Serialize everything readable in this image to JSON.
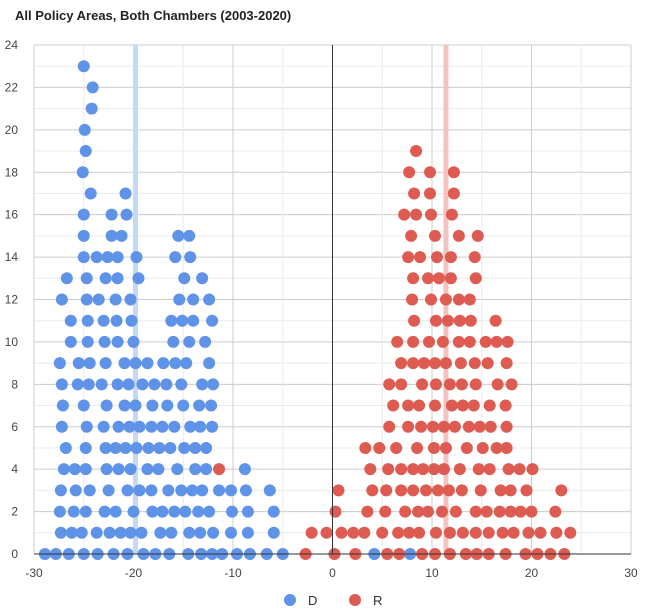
{
  "chart_data": {
    "type": "scatter",
    "title": "All Policy Areas, Both Chambers (2003-2020)",
    "xlabel": "",
    "ylabel": "",
    "xlim": [
      -30,
      30
    ],
    "ylim": [
      0,
      24
    ],
    "x_ticks": [
      -30,
      -20,
      -10,
      0,
      10,
      20,
      30
    ],
    "y_ticks": [
      0,
      2,
      4,
      6,
      8,
      10,
      12,
      14,
      16,
      18,
      20,
      22,
      24
    ],
    "grid": true,
    "legend_position": "bottom",
    "series": [
      {
        "name": "D",
        "color": "#5f93e8",
        "mean_line_x": -19.8,
        "mean_line_color": "#c4d8f7",
        "x_by_level": [
          [
            -28.9,
            -27.8,
            -26.5,
            -25.0,
            -23.6,
            -22.0,
            -20.6,
            -19.0,
            -17.8,
            -16.4,
            -14.5,
            -13.2,
            -12.1,
            -11.1,
            -9.6,
            -8.3,
            -6.6,
            -5.0,
            4.2,
            7.8
          ],
          [
            -27.3,
            -26.2,
            -25.2,
            -23.7,
            -22.4,
            -21.3,
            -20.3,
            -19.2,
            -17.3,
            -16.2,
            -14.4,
            -13.3,
            -12.0,
            -10.2,
            -8.5,
            -5.9
          ],
          [
            -27.4,
            -26.0,
            -24.8,
            -22.9,
            -21.8,
            -20.0,
            -18.1,
            -17.1,
            -15.9,
            -14.8,
            -13.5,
            -12.4,
            -10.1,
            -8.5,
            -5.9
          ],
          [
            -27.3,
            -25.8,
            -24.4,
            -22.5,
            -20.6,
            -19.4,
            -18.2,
            -16.5,
            -15.2,
            -14.1,
            -13.1,
            -11.4,
            -10.2,
            -8.7,
            -6.3
          ],
          [
            -27.0,
            -25.9,
            -24.8,
            -22.7,
            -21.5,
            -20.3,
            -18.6,
            -17.5,
            -15.6,
            -13.8,
            -12.7,
            -8.8
          ],
          [
            -26.8,
            -24.8,
            -22.8,
            -21.8,
            -20.8,
            -19.7,
            -18.5,
            -17.4,
            -16.3,
            -14.9,
            -13.8,
            -12.7
          ],
          [
            -27.2,
            -24.7,
            -23.0,
            -21.5,
            -20.4,
            -19.4,
            -18.2,
            -17.1,
            -15.9,
            -14.3,
            -13.3,
            -12.1
          ],
          [
            -27.1,
            -25.0,
            -22.7,
            -20.9,
            -19.8,
            -18.1,
            -16.6,
            -15.0,
            -13.4,
            -12.2
          ],
          [
            -27.2,
            -25.6,
            -24.5,
            -23.2,
            -21.6,
            -20.5,
            -19.1,
            -17.9,
            -16.7,
            -15.2,
            -13.1,
            -12.0
          ],
          [
            -27.4,
            -25.5,
            -24.4,
            -22.8,
            -20.9,
            -19.8,
            -18.6,
            -17.0,
            -15.8,
            -14.7,
            -12.4
          ],
          [
            -26.3,
            -24.6,
            -22.9,
            -21.6,
            -20.0,
            -16.0,
            -14.4,
            -12.8
          ],
          [
            -26.3,
            -24.6,
            -23.0,
            -21.7,
            -20.2,
            -16.2,
            -15.1,
            -14.0,
            -12.1
          ],
          [
            -27.2,
            -24.7,
            -23.5,
            -21.8,
            -20.3,
            -15.4,
            -14.0,
            -12.4
          ],
          [
            -26.7,
            -24.7,
            -22.8,
            -21.6,
            -19.5,
            -14.9,
            -13.1
          ],
          [
            -25.0,
            -23.7,
            -22.6,
            -21.6,
            -19.7,
            -15.8,
            -14.3
          ],
          [
            -25.0,
            -22.2,
            -21.2,
            -15.5,
            -14.4
          ],
          [
            -25.0,
            -22.2,
            -20.7
          ],
          [
            -24.3,
            -20.8
          ],
          [
            -25.1
          ],
          [
            -24.8
          ],
          [
            -24.9
          ],
          [
            -24.2
          ],
          [
            -24.1
          ],
          [
            -25.0
          ]
        ]
      },
      {
        "name": "R",
        "color": "#de5b52",
        "mean_line_x": 11.4,
        "mean_line_color": "#f4c3bf",
        "x_by_level": [
          [
            -2.7,
            0.2,
            2.3,
            5.5,
            6.7,
            9.0,
            10.3,
            11.8,
            13.4,
            14.5,
            15.7,
            17.4,
            19.4,
            20.6,
            21.9,
            23.3
          ],
          [
            -2.1,
            -0.6,
            0.9,
            2.1,
            3.2,
            5.0,
            6.6,
            7.7,
            8.7,
            10.4,
            11.8,
            13.1,
            14.4,
            15.7,
            17.1,
            18.2,
            19.7,
            20.9,
            22.5,
            23.9
          ],
          [
            0.3,
            3.5,
            5.3,
            7.3,
            8.6,
            9.6,
            11.0,
            12.4,
            14.4,
            15.5,
            16.8,
            17.9,
            18.9,
            20.0,
            22.4
          ],
          [
            0.6,
            4.0,
            5.4,
            6.9,
            8.1,
            9.4,
            10.6,
            11.7,
            13.0,
            14.9,
            16.9,
            17.9,
            19.5,
            23.0
          ],
          [
            -11.4,
            3.8,
            5.6,
            6.9,
            8.1,
            9.1,
            10.2,
            11.2,
            12.8,
            14.7,
            15.8,
            17.7,
            18.8,
            20.1
          ],
          [
            3.3,
            4.7,
            6.4,
            8.5,
            10.2,
            11.4,
            13.5,
            15.1,
            16.5,
            17.5
          ],
          [
            5.7,
            7.6,
            8.9,
            10.1,
            11.2,
            12.3,
            13.7,
            14.8,
            15.9,
            17.5
          ],
          [
            6.1,
            7.6,
            8.7,
            10.3,
            12.0,
            13.1,
            14.2,
            15.8,
            17.4
          ],
          [
            5.7,
            6.9,
            9.0,
            10.4,
            11.8,
            13.0,
            14.4,
            16.6,
            18.0
          ],
          [
            6.9,
            8.1,
            9.2,
            10.3,
            11.4,
            12.9,
            14.3,
            15.6,
            17.5
          ],
          [
            6.5,
            8.1,
            9.7,
            11.1,
            12.7,
            13.8,
            15.4,
            16.5,
            17.6
          ],
          [
            8.2,
            10.4,
            11.6,
            12.8,
            13.9,
            16.4
          ],
          [
            8.0,
            9.9,
            11.4,
            12.7,
            13.8
          ],
          [
            8.1,
            9.6,
            10.7,
            11.9,
            14.4
          ],
          [
            7.6,
            8.8,
            10.5,
            11.9,
            14.3
          ],
          [
            7.9,
            10.3,
            12.7,
            14.6
          ],
          [
            7.2,
            8.4,
            9.9,
            12.0
          ],
          [
            8.2,
            9.8,
            12.2
          ],
          [
            7.7,
            9.8,
            12.2
          ],
          [
            8.4
          ]
        ]
      }
    ]
  }
}
